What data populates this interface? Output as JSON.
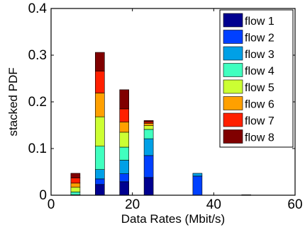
{
  "chart_data": {
    "type": "bar",
    "stacked": true,
    "xlabel": "Data Rates (Mbit/s)",
    "ylabel": "stacked PDF",
    "xlim": [
      0,
      60
    ],
    "ylim": [
      0,
      0.4
    ],
    "xticks": [
      0,
      20,
      40,
      60
    ],
    "yticks": [
      0,
      0.1,
      0.2,
      0.3,
      0.4
    ],
    "ytick_labels": [
      "0",
      "0.1",
      "0.2",
      "0.3",
      "0.4"
    ],
    "grid": false,
    "legend_position": "top-right",
    "x": [
      6,
      12,
      18,
      24,
      36,
      48
    ],
    "series": [
      {
        "name": "flow 1",
        "color": "#00008f",
        "values": [
          0,
          0.023,
          0.029,
          0.038,
          0,
          0
        ]
      },
      {
        "name": "flow 2",
        "color": "#0040ff",
        "values": [
          0,
          0.012,
          0.017,
          0.047,
          0.041,
          0
        ]
      },
      {
        "name": "flow 3",
        "color": "#00a0e6",
        "values": [
          0,
          0.02,
          0.029,
          0.036,
          0.006,
          0
        ]
      },
      {
        "name": "flow 4",
        "color": "#40ffbf",
        "values": [
          0.007,
          0.05,
          0.028,
          0.02,
          0,
          0
        ]
      },
      {
        "name": "flow 5",
        "color": "#ccff33",
        "values": [
          0.01,
          0.063,
          0.032,
          0.008,
          0,
          0
        ]
      },
      {
        "name": "flow 6",
        "color": "#ffa000",
        "values": [
          0.009,
          0.051,
          0.022,
          0.005,
          0,
          0
        ]
      },
      {
        "name": "flow 7",
        "color": "#ff2000",
        "values": [
          0.011,
          0.047,
          0.028,
          0.003,
          0,
          0
        ]
      },
      {
        "name": "flow 8",
        "color": "#800000",
        "values": [
          0.01,
          0.04,
          0.041,
          0.003,
          0,
          0
        ]
      }
    ],
    "baseline_bars": [
      {
        "x": 6,
        "value": 0.001
      },
      {
        "x": 48,
        "value": 0.001
      }
    ]
  }
}
